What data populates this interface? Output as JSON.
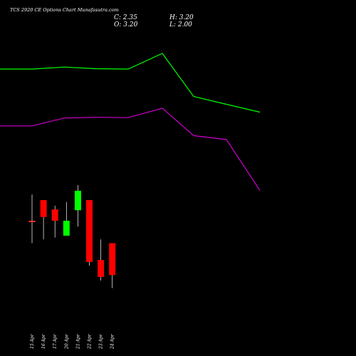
{
  "title": "TCS 2920 CE Options Chart Munafasutra.com",
  "ohlc_readout": {
    "close": "C: 2.35",
    "open": "O: 3.20",
    "high": "H: 3.20",
    "low": "L: 2.00"
  },
  "colors": {
    "background": "#000000",
    "up": "#00ff00",
    "down": "#ff0000",
    "neutral": "#ff3333",
    "wick": "#ffffff",
    "upper_line": "#00ff00",
    "lower_line": "#cc00cc",
    "text": "#ffffff"
  },
  "chart_data": {
    "type": "candlestick",
    "categories": [
      "15 Apr",
      "16 Apr",
      "17 Apr",
      "20 Apr",
      "21 Apr",
      "22 Apr",
      "23 Apr",
      "24 Apr"
    ],
    "candles": [
      {
        "date": "15 Apr",
        "open": 3.8,
        "high": 4.5,
        "low": 3.2,
        "close": 3.8
      },
      {
        "date": "16 Apr",
        "open": 4.35,
        "high": 4.35,
        "low": 3.3,
        "close": 3.9
      },
      {
        "date": "17 Apr",
        "open": 4.1,
        "high": 4.2,
        "low": 3.35,
        "close": 3.8
      },
      {
        "date": "20 Apr",
        "open": 3.4,
        "high": 4.3,
        "low": 3.4,
        "close": 3.8
      },
      {
        "date": "21 Apr",
        "open": 4.08,
        "high": 4.75,
        "low": 3.64,
        "close": 4.6
      },
      {
        "date": "22 Apr",
        "open": 4.35,
        "high": 4.35,
        "low": 2.6,
        "close": 2.7
      },
      {
        "date": "23 Apr",
        "open": 2.75,
        "high": 3.3,
        "low": 2.2,
        "close": 2.3
      },
      {
        "date": "24 Apr",
        "open": 3.2,
        "high": 3.2,
        "low": 2.0,
        "close": 2.35
      }
    ],
    "upper_line": [
      {
        "x": "0",
        "y": 9.6
      },
      {
        "x": "1",
        "y": 9.6
      },
      {
        "x": "2",
        "y": 9.65
      },
      {
        "x": "3",
        "y": 9.61
      },
      {
        "x": "4",
        "y": 9.6
      },
      {
        "x": "5",
        "y": 10.0
      },
      {
        "x": "6",
        "y": 8.9
      },
      {
        "x": "7",
        "y": 8.7
      },
      {
        "x": "8",
        "y": 8.5
      }
    ],
    "lower_line": [
      {
        "x": "0",
        "y": 8.15
      },
      {
        "x": "1",
        "y": 8.15
      },
      {
        "x": "2",
        "y": 8.35
      },
      {
        "x": "3",
        "y": 8.37
      },
      {
        "x": "4",
        "y": 8.36
      },
      {
        "x": "5",
        "y": 8.6
      },
      {
        "x": "6",
        "y": 7.9
      },
      {
        "x": "7",
        "y": 7.8
      },
      {
        "x": "8",
        "y": 6.5
      }
    ]
  }
}
